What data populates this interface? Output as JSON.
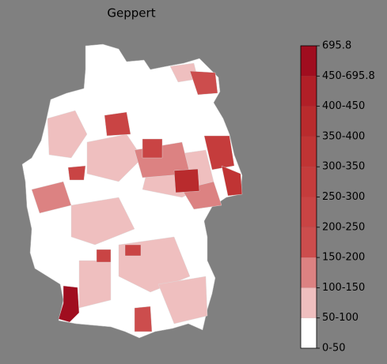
{
  "title": "Geppert",
  "legend": {
    "ticks": [
      "0-50",
      "50-100",
      "100-150",
      "150-200",
      "200-250",
      "250-300",
      "300-350",
      "350-400",
      "400-450",
      "450-695.8",
      "695.8"
    ],
    "colors": [
      "#ffffff",
      "#efbfbf",
      "#dc8282",
      "#cc4d4d",
      "#c94444",
      "#c53c3c",
      "#c03434",
      "#b92b2d",
      "#b11f27",
      "#a00d1f"
    ]
  }
}
